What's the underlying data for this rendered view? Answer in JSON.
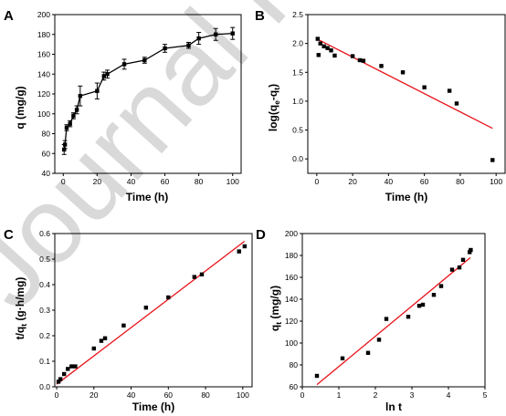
{
  "watermark": {
    "text": "Journal Pre-proof",
    "color": "#d9d9d9"
  },
  "chart_data": [
    {
      "panel": "A",
      "type": "line",
      "xlabel": "Time (h)",
      "ylabel": "q (mg/g)",
      "xlim": [
        -5,
        105
      ],
      "ylim": [
        40,
        200
      ],
      "xticks": [
        0,
        20,
        40,
        60,
        80,
        100
      ],
      "yticks": [
        40,
        60,
        80,
        100,
        120,
        140,
        160,
        180,
        200
      ],
      "series": [
        {
          "x": [
            0.5,
            1,
            2,
            4,
            6,
            8,
            10,
            20,
            24,
            26,
            36,
            48,
            60,
            74,
            80,
            90,
            100
          ],
          "y": [
            64,
            69,
            86,
            90,
            98,
            104,
            118,
            123,
            138,
            140,
            150,
            154,
            166,
            169,
            176,
            180,
            181
          ],
          "err": [
            5,
            4,
            3,
            3,
            3,
            4,
            10,
            8,
            4,
            4,
            5,
            3,
            4,
            3,
            6,
            6,
            6
          ],
          "marker": "square",
          "color": "#000000"
        }
      ]
    },
    {
      "panel": "B",
      "type": "scatter",
      "xlabel": "Time (h)",
      "ylabel": "log(qe-qt)",
      "xlim": [
        -5,
        105
      ],
      "ylim": [
        -0.25,
        2.5
      ],
      "xticks": [
        0,
        20,
        40,
        60,
        80,
        100
      ],
      "yticks": [
        0.0,
        0.5,
        1.0,
        1.5,
        2.0,
        2.5
      ],
      "series": [
        {
          "x": [
            0.5,
            1,
            2,
            4,
            6,
            8,
            10,
            20,
            24,
            26,
            36,
            48,
            60,
            74,
            78,
            98
          ],
          "y": [
            2.08,
            1.8,
            2.0,
            1.95,
            1.92,
            1.88,
            1.79,
            1.78,
            1.71,
            1.7,
            1.61,
            1.5,
            1.24,
            1.18,
            0.96,
            -0.02
          ],
          "marker": "square",
          "color": "#000000"
        }
      ],
      "fit_line": {
        "x": [
          0,
          98
        ],
        "y": [
          2.08,
          0.53
        ],
        "color": "#e8141b"
      }
    },
    {
      "panel": "C",
      "type": "scatter",
      "xlabel": "Time (h)",
      "ylabel": "t/qt (g·h/mg)",
      "xlim": [
        -1,
        105
      ],
      "ylim": [
        0.0,
        0.6
      ],
      "xticks": [
        0,
        20,
        40,
        60,
        80,
        100
      ],
      "yticks": [
        0.0,
        0.1,
        0.2,
        0.3,
        0.4,
        0.5,
        0.6
      ],
      "series": [
        {
          "x": [
            1,
            2,
            4,
            6,
            8,
            10,
            20,
            24,
            26,
            36,
            48,
            60,
            74,
            78,
            98,
            101
          ],
          "y": [
            0.02,
            0.03,
            0.05,
            0.07,
            0.08,
            0.08,
            0.15,
            0.18,
            0.19,
            0.24,
            0.31,
            0.35,
            0.43,
            0.44,
            0.53,
            0.55
          ],
          "marker": "square",
          "color": "#000000"
        }
      ],
      "fit_line": {
        "x": [
          0,
          101
        ],
        "y": [
          0.01,
          0.57
        ],
        "color": "#e8141b"
      }
    },
    {
      "panel": "D",
      "type": "scatter",
      "xlabel": "ln t",
      "ylabel": "qt (mg/g)",
      "xlim": [
        0,
        5
      ],
      "ylim": [
        60,
        200
      ],
      "xticks": [
        0,
        1,
        2,
        3,
        4,
        5
      ],
      "yticks": [
        60,
        80,
        100,
        120,
        140,
        160,
        180,
        200
      ],
      "series": [
        {
          "x": [
            0.4,
            1.1,
            1.8,
            2.1,
            2.3,
            2.9,
            3.2,
            3.3,
            3.6,
            3.8,
            4.1,
            4.3,
            4.4,
            4.58,
            4.61
          ],
          "y": [
            70,
            86,
            91,
            103,
            122,
            124,
            134,
            135,
            144,
            152,
            167,
            169,
            176,
            183,
            185
          ],
          "marker": "square",
          "color": "#000000"
        }
      ],
      "fit_line": {
        "x": [
          0.4,
          4.6
        ],
        "y": [
          62,
          178
        ],
        "color": "#e8141b"
      }
    }
  ]
}
